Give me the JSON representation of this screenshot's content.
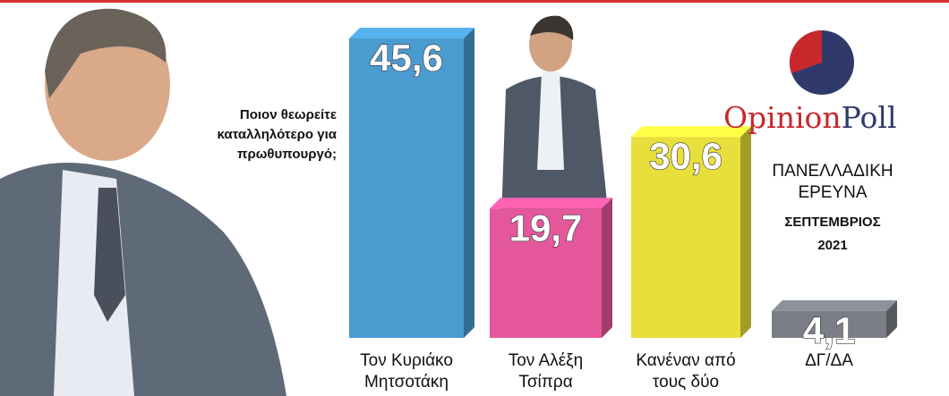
{
  "chart_data": {
    "type": "bar3d",
    "question": "Ποιον θεωρείτε καταλληλότερο για πρωθυπουργό;",
    "categories": [
      "Τον Κυριάκο Μητσοτάκη",
      "Τον Αλέξη Τσίπρα",
      "Κανέναν από τους δύο",
      "ΔΓ/ΔΑ"
    ],
    "values": [
      45.6,
      19.7,
      30.6,
      4.1
    ],
    "value_labels": [
      "45,6",
      "19,7",
      "30,6",
      "4,1"
    ],
    "colors": [
      "#4a9bd0",
      "#e4579b",
      "#e9df3c",
      "#7b7e86"
    ],
    "brand": {
      "first": "Opinion",
      "second": "Poll"
    },
    "survey": {
      "line1": "ΠΑΝΕΛΛΑΔΙΚΗ",
      "line2": "ΕΡΕΥΝΑ",
      "month": "ΣΕΠΤΕΜΒΡΙΟΣ",
      "year": "2021"
    }
  }
}
